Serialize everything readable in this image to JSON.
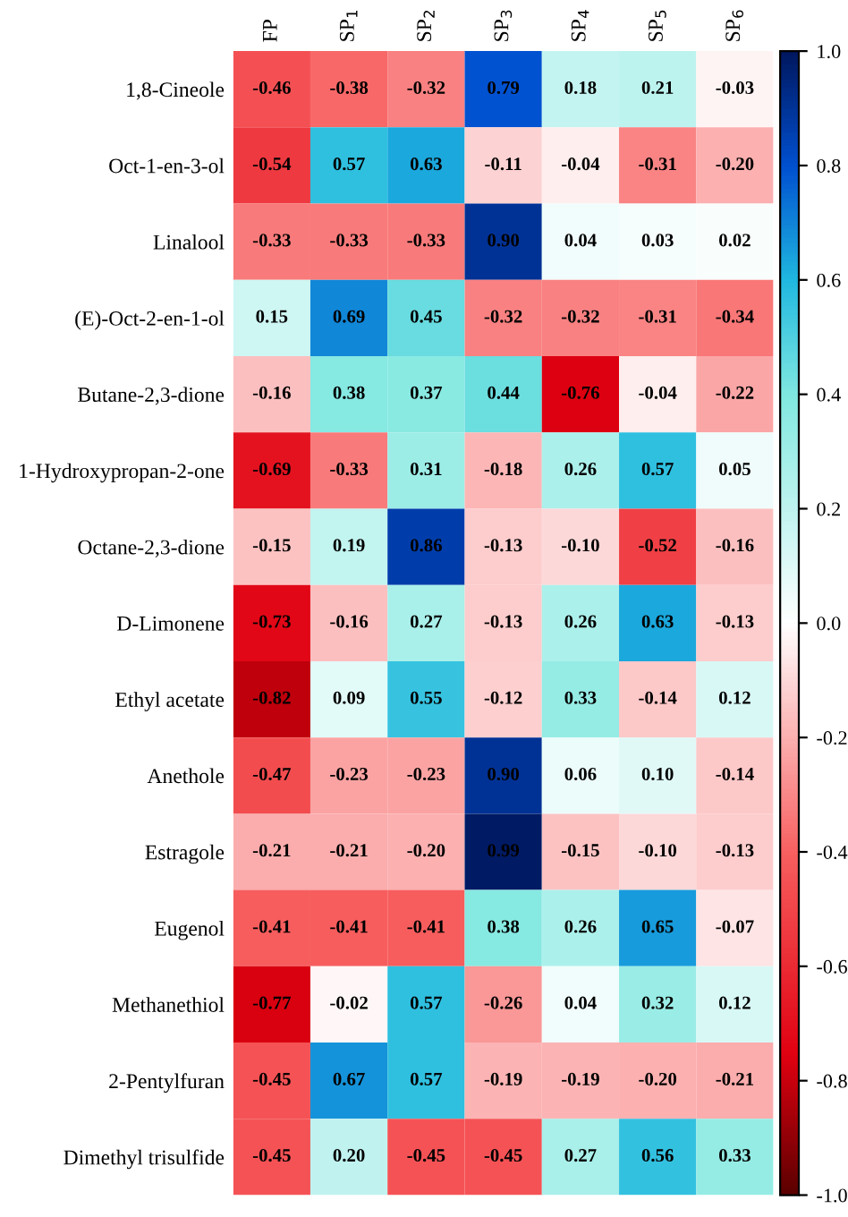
{
  "chart_data": {
    "type": "heatmap",
    "categories": [
      "FP",
      "SP$_{1}$",
      "SP$_{2}$",
      "SP$_{3}$",
      "SP$_{4}$",
      "SP$_{5}$",
      "SP$_{6}$"
    ],
    "y_categories": [
      "1,8-Cineole",
      "Oct-1-en-3-ol",
      "Linalool",
      "(E)-Oct-2-en-1-ol",
      "Butane-2,3-dione",
      "1-Hydroxypropan-2-one",
      "Octane-2,3-dione",
      "D-Limonene",
      "Ethyl acetate",
      "Anethole",
      "Estragole",
      "Eugenol",
      "Methanethiol",
      "2-Pentylfuran",
      "Dimethyl trisulfide"
    ],
    "cells": [
      [
        -0.46,
        -0.38,
        -0.32,
        0.79,
        0.18,
        0.21,
        -0.03
      ],
      [
        -0.54,
        0.57,
        0.63,
        -0.11,
        -0.04,
        -0.31,
        -0.2
      ],
      [
        -0.33,
        -0.33,
        -0.33,
        0.9,
        0.04,
        0.03,
        0.02
      ],
      [
        0.15,
        0.69,
        0.45,
        -0.32,
        -0.32,
        -0.31,
        -0.34
      ],
      [
        -0.16,
        0.38,
        0.37,
        0.44,
        -0.76,
        -0.04,
        -0.22
      ],
      [
        -0.69,
        -0.33,
        0.31,
        -0.18,
        0.26,
        0.57,
        0.05
      ],
      [
        -0.15,
        0.19,
        0.86,
        -0.13,
        -0.1,
        -0.52,
        -0.16
      ],
      [
        -0.73,
        -0.16,
        0.27,
        -0.13,
        0.26,
        0.63,
        -0.13
      ],
      [
        -0.82,
        0.09,
        0.55,
        -0.12,
        0.33,
        -0.14,
        0.12
      ],
      [
        -0.47,
        -0.23,
        -0.23,
        0.9,
        0.06,
        0.1,
        -0.14
      ],
      [
        -0.21,
        -0.21,
        -0.2,
        0.99,
        -0.15,
        -0.1,
        -0.13
      ],
      [
        -0.41,
        -0.41,
        -0.41,
        0.38,
        0.26,
        0.65,
        -0.07
      ],
      [
        -0.77,
        -0.02,
        0.57,
        -0.26,
        0.04,
        0.32,
        0.12
      ],
      [
        -0.45,
        0.67,
        0.57,
        -0.19,
        -0.19,
        -0.2,
        -0.21
      ],
      [
        -0.45,
        0.2,
        -0.45,
        -0.45,
        0.27,
        0.56,
        0.33
      ]
    ],
    "cell_labels": [
      [
        "-0.46",
        "-0.38",
        "-0.32",
        "0.79",
        "0.18",
        "0.21",
        "-0.03"
      ],
      [
        "-0.54",
        "0.57",
        "0.63",
        "-0.11",
        "-0.04",
        "-0.31",
        "-0.20"
      ],
      [
        "-0.33",
        "-0.33",
        "-0.33",
        "0.90",
        "0.04",
        "0.03",
        "0.02"
      ],
      [
        "0.15",
        "0.69",
        "0.45",
        "-0.32",
        "-0.32",
        "-0.31",
        "-0.34"
      ],
      [
        "-0.16",
        "0.38",
        "0.37",
        "0.44",
        "-0.76",
        "-0.04",
        "-0.22"
      ],
      [
        "-0.69",
        "-0.33",
        "0.31",
        "-0.18",
        "0.26",
        "0.57",
        "0.05"
      ],
      [
        "-0.15",
        "0.19",
        "0.86",
        "-0.13",
        "-0.10",
        "-0.52",
        "-0.16"
      ],
      [
        "-0.73",
        "-0.16",
        "0.27",
        "-0.13",
        "0.26",
        "0.63",
        "-0.13"
      ],
      [
        "-0.82",
        "0.09",
        "0.55",
        "-0.12",
        "0.33",
        "-0.14",
        "0.12"
      ],
      [
        "-0.47",
        "-0.23",
        "-0.23",
        "0.90",
        "0.06",
        "0.10",
        "-0.14"
      ],
      [
        "-0.21",
        "-0.21",
        "-0.20",
        "0.99",
        "-0.15",
        "-0.10",
        "-0.13"
      ],
      [
        "-0.41",
        "-0.41",
        "-0.41",
        "0.38",
        "0.26",
        "0.65",
        "-0.07"
      ],
      [
        "-0.77",
        "-0.02",
        "0.57",
        "-0.26",
        "0.04",
        "0.32",
        "0.12"
      ],
      [
        "-0.45",
        "0.67",
        "0.57",
        "-0.19",
        "-0.19",
        "-0.20",
        "-0.21"
      ],
      [
        "-0.45",
        "0.20",
        "-0.45",
        "-0.45",
        "0.27",
        "0.56",
        "0.33"
      ]
    ],
    "clim": [
      -1.0,
      1.0
    ],
    "cticks": [
      {
        "value": 1.0,
        "label": "1.0"
      },
      {
        "value": 0.8,
        "label": "0.8"
      },
      {
        "value": 0.6,
        "label": "0.6"
      },
      {
        "value": 0.4,
        "label": "0.4"
      },
      {
        "value": 0.2,
        "label": "0.2"
      },
      {
        "value": 0.0,
        "label": "0.0"
      },
      {
        "value": -0.2,
        "label": "-0.2"
      },
      {
        "value": -0.4,
        "label": "-0.4"
      },
      {
        "value": -0.6,
        "label": "-0.6"
      },
      {
        "value": -0.8,
        "label": "-0.8"
      },
      {
        "value": -1.0,
        "label": "-1.0"
      }
    ]
  }
}
